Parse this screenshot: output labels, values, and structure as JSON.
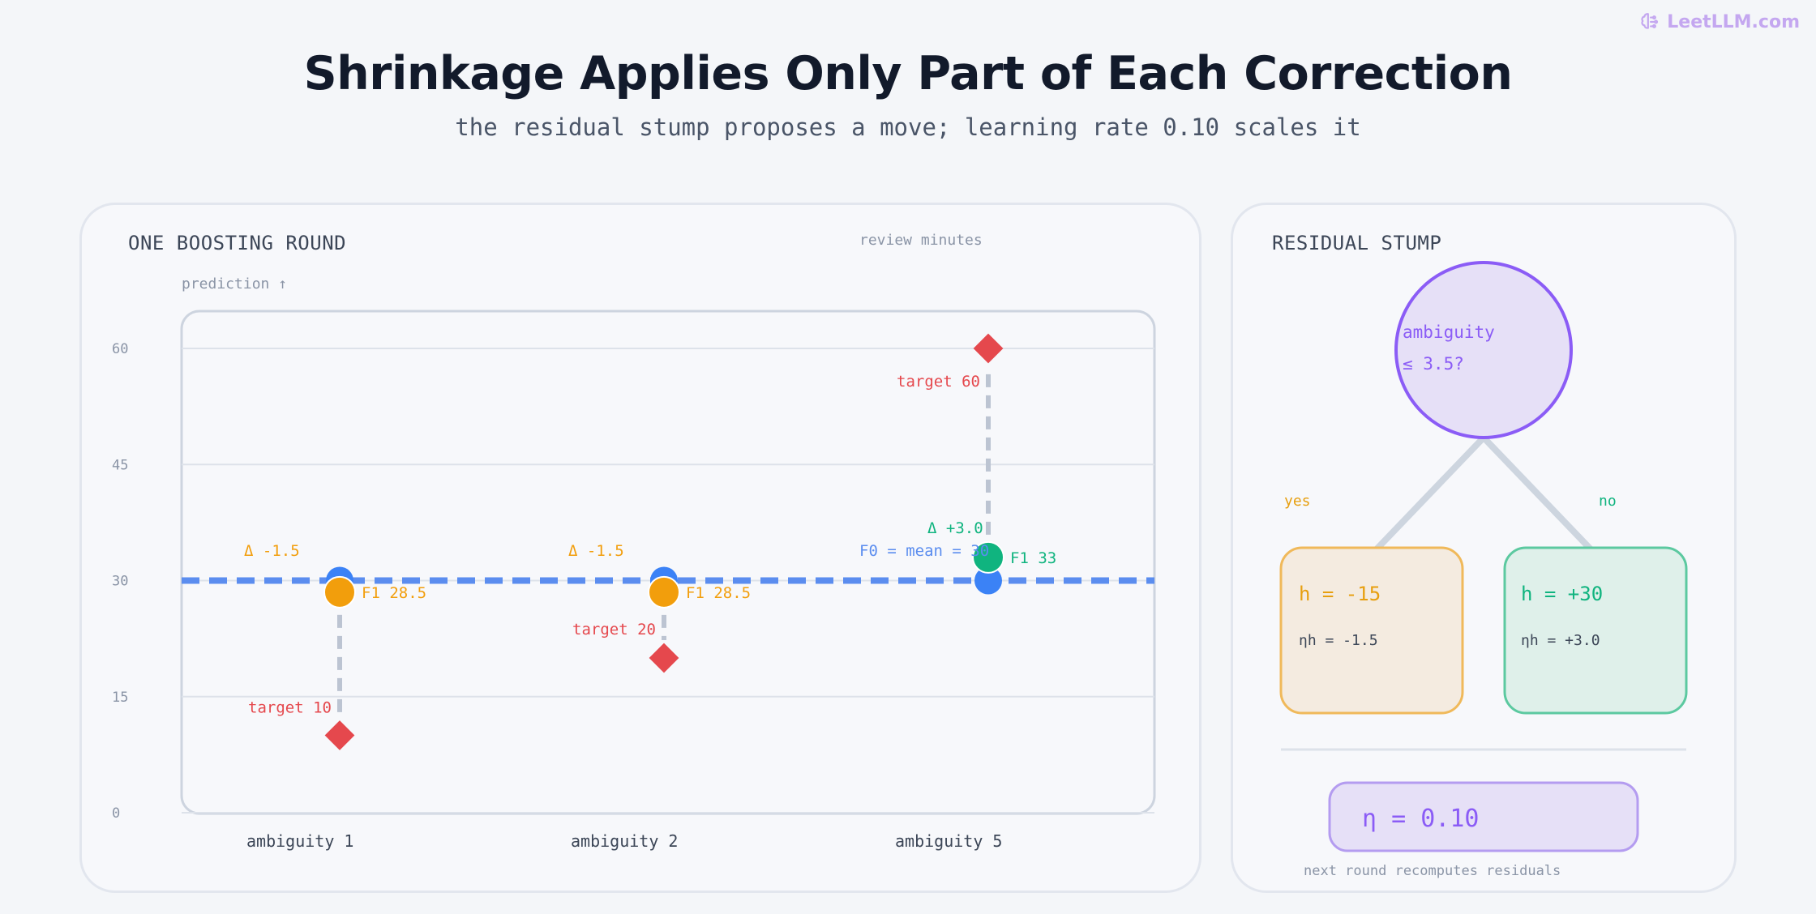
{
  "brand": {
    "name": "LeetLLM.com",
    "color": "#c4a7f0"
  },
  "title": "Shrinkage Applies Only Part of Each Correction",
  "subtitle": "the residual stump proposes a move; learning rate 0.10 scales it",
  "left_panel": {
    "heading": "ONE BOOSTING ROUND",
    "legend_note": "review minutes",
    "y_axis_label": "prediction ↑"
  },
  "chart_data": {
    "type": "scatter",
    "title": "ONE BOOSTING ROUND",
    "ylabel": "prediction ↑",
    "ylim": [
      0,
      60
    ],
    "yticks": [
      0,
      15,
      30,
      45,
      60
    ],
    "grid": true,
    "categories": [
      "ambiguity 1",
      "ambiguity 2",
      "ambiguity 5"
    ],
    "baseline": {
      "name": "F0 = mean = 30",
      "value": 30,
      "color": "#5b8def"
    },
    "targets": [
      {
        "category": "ambiguity 1",
        "value": 10,
        "label": "target 10"
      },
      {
        "category": "ambiguity 2",
        "value": 20,
        "label": "target 20"
      },
      {
        "category": "ambiguity 5",
        "value": 60,
        "label": "target 60"
      }
    ],
    "updated": [
      {
        "category": "ambiguity 1",
        "value": 28.5,
        "label": "F1 28.5",
        "delta": "Δ -1.5",
        "color": "#f29e0c"
      },
      {
        "category": "ambiguity 2",
        "value": 28.5,
        "label": "F1 28.5",
        "delta": "Δ -1.5",
        "color": "#f29e0c"
      },
      {
        "category": "ambiguity 5",
        "value": 33,
        "label": "F1 33",
        "delta": "Δ +3.0",
        "color": "#10b47f"
      }
    ],
    "colors": {
      "target": "#e5484d",
      "f0": "#3b82f6",
      "connector": "#bcc4d2",
      "grid": "#dde2ea"
    }
  },
  "right_panel": {
    "heading": "RESIDUAL STUMP",
    "node_line1": "ambiguity",
    "node_line2": "≤ 3.5?",
    "branch_yes": "yes",
    "branch_no": "no",
    "leaf_left": {
      "h": "h = -15",
      "eta_h": "ηh = -1.5"
    },
    "leaf_right": {
      "h": "h = +30",
      "eta_h": "ηh = +3.0"
    },
    "eta": "η = 0.10",
    "footer": "next round recomputes residuals"
  }
}
